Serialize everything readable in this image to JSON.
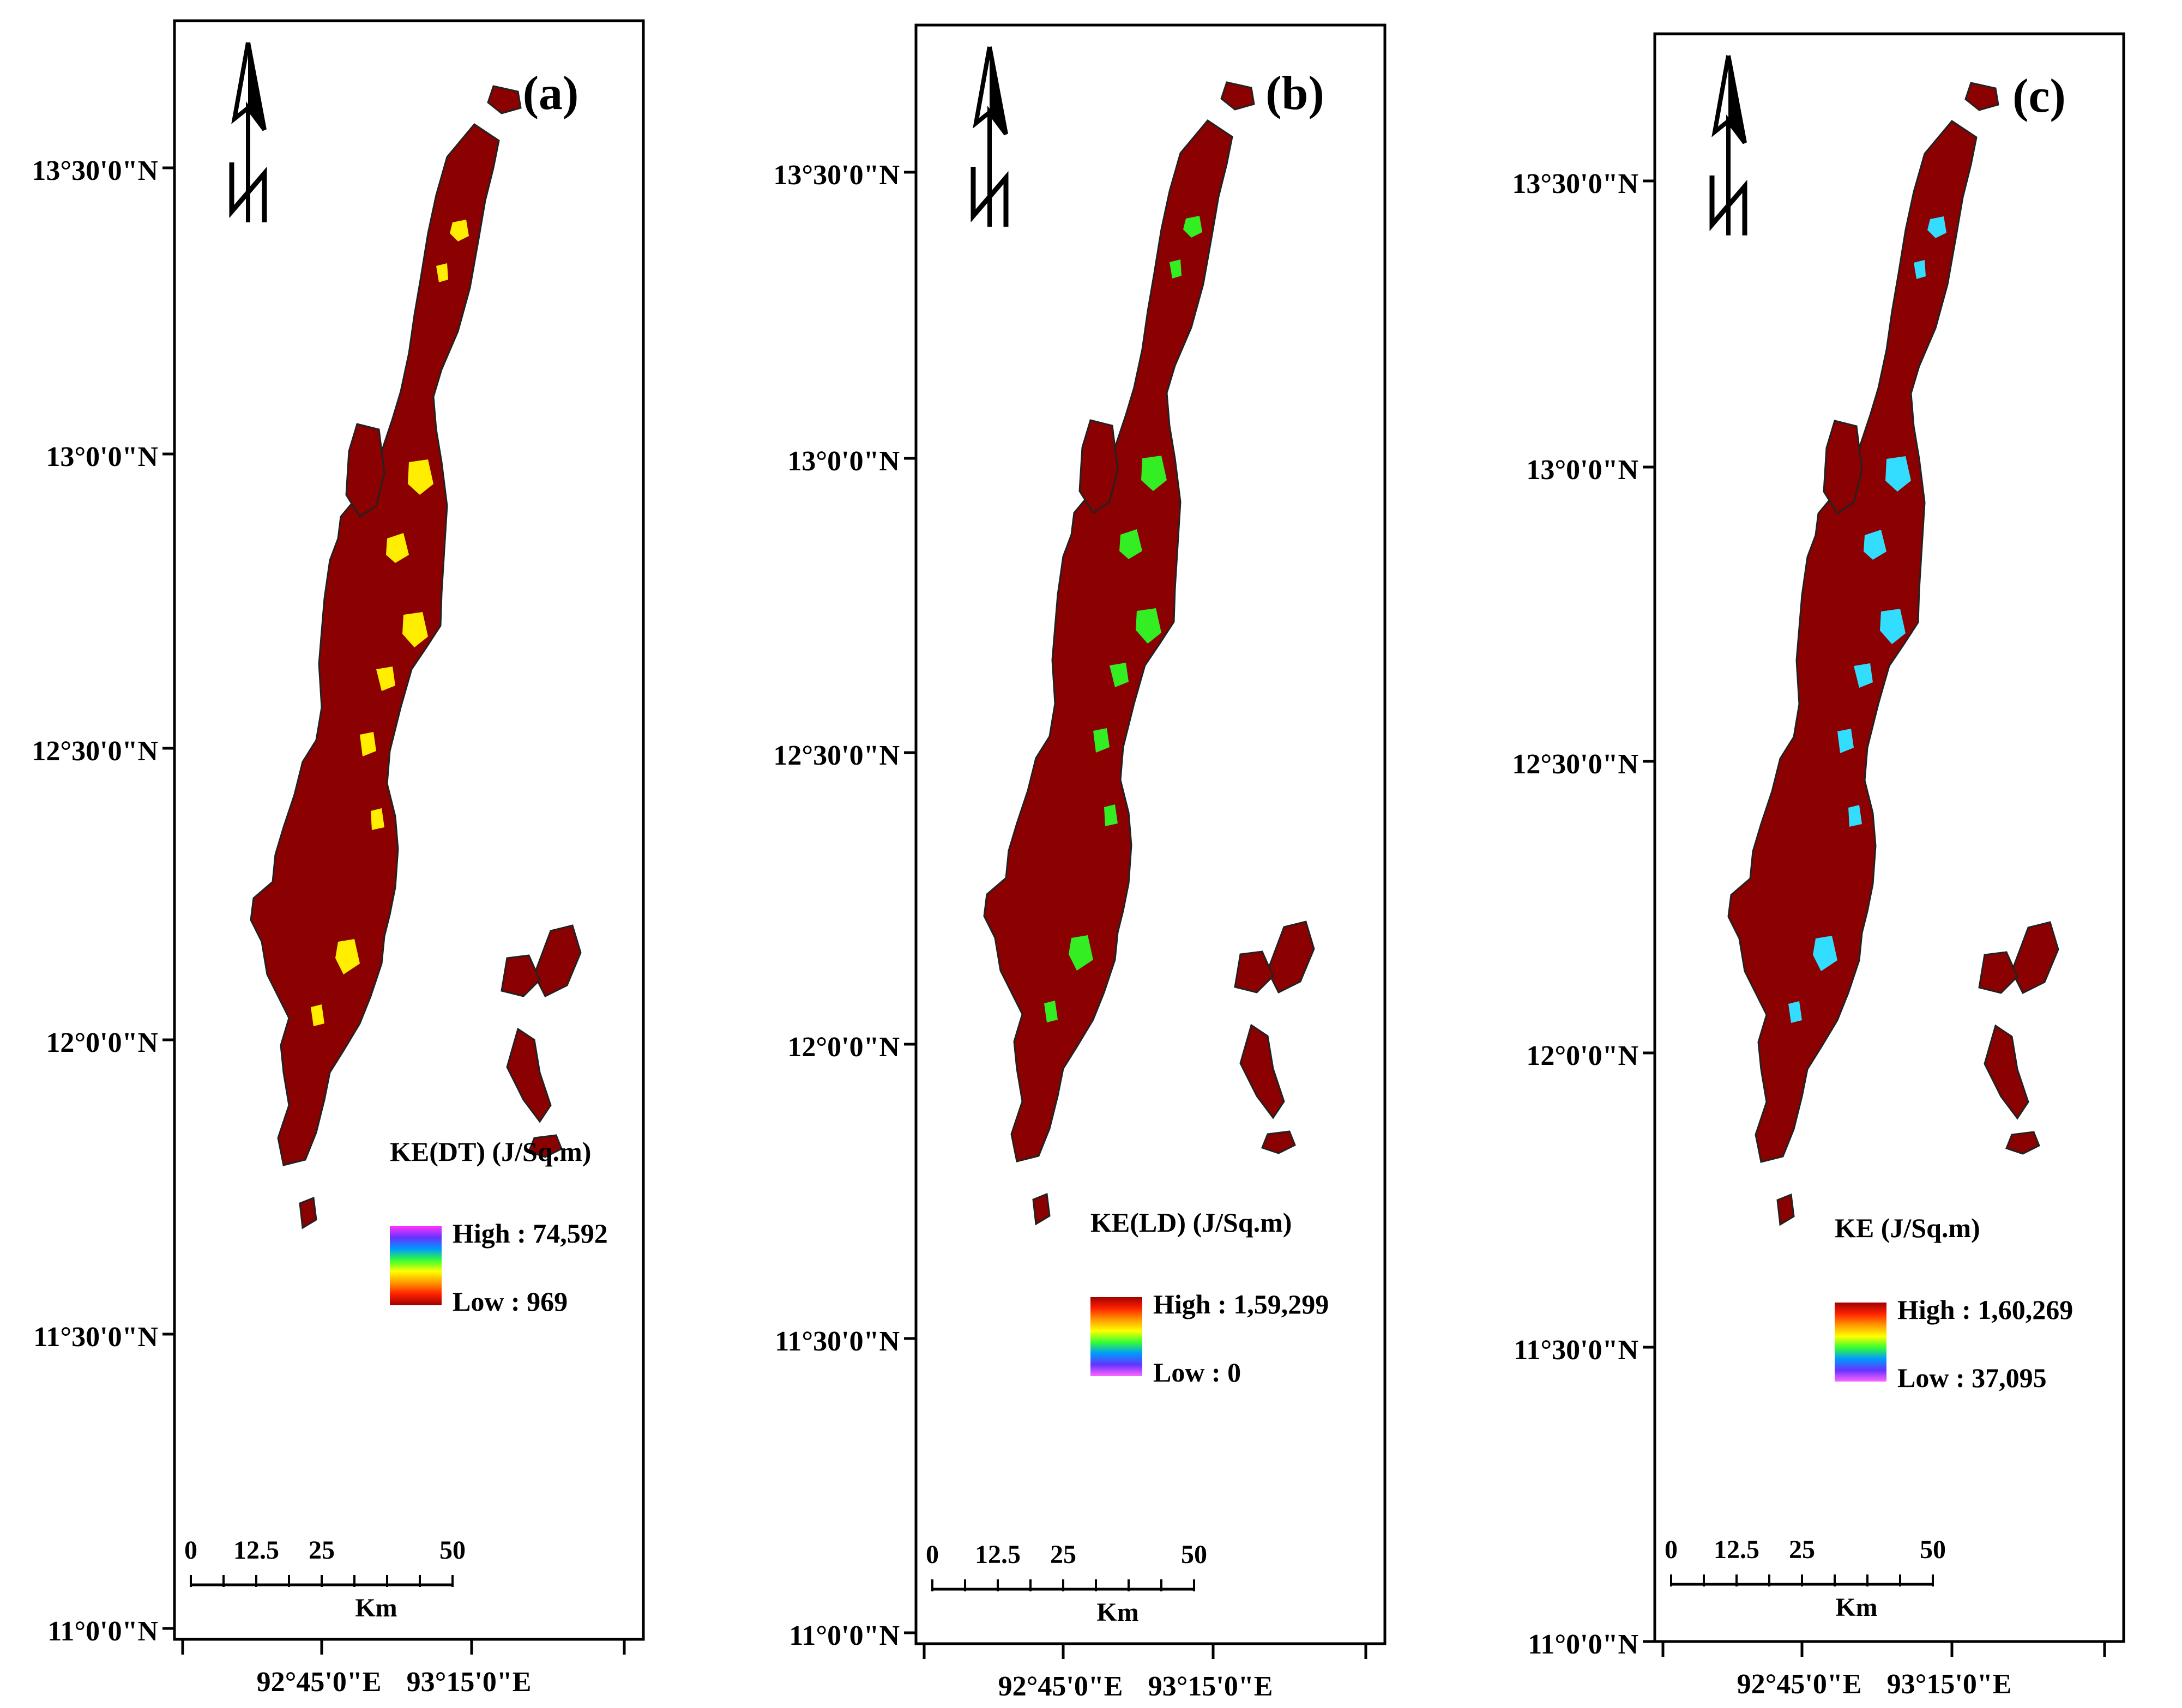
{
  "figure": {
    "panels": [
      {
        "id": "a",
        "label": "(a)",
        "legend_title": "KE(DT) (J/Sq.m)",
        "legend_high": "High : 74,592",
        "legend_low": "Low : 969",
        "highlight_color": "#ffee00",
        "ramp": [
          "#ff33ff",
          "#6633ff",
          "#0099ff",
          "#33ff33",
          "#ffff00",
          "#ff9900",
          "#ff2200",
          "#a00000"
        ]
      },
      {
        "id": "b",
        "label": "(b)",
        "legend_title": "KE(LD) (J/Sq.m)",
        "legend_high": "High : 1,59,299",
        "legend_low": "Low : 0",
        "highlight_color": "#33ee22",
        "ramp": [
          "#a00000",
          "#ff2200",
          "#ff9900",
          "#ffff00",
          "#33ff33",
          "#0099ff",
          "#6633ff",
          "#ff66ff"
        ]
      },
      {
        "id": "c",
        "label": "(c)",
        "legend_title": "KE (J/Sq.m)",
        "legend_high": "High : 1,60,269",
        "legend_low": "Low : 37,095",
        "highlight_color": "#33ddff",
        "ramp": [
          "#a00000",
          "#ff2200",
          "#ff9900",
          "#ffff00",
          "#33ff33",
          "#0099ff",
          "#6633ff",
          "#ff66ff"
        ]
      }
    ],
    "lat_labels": [
      "13°30'0\"N",
      "13°0'0\"N",
      "12°30'0\"N",
      "12°0'0\"N",
      "11°30'0\"N",
      "11°0'0\"N"
    ],
    "lon_labels": [
      "92°45'0\"E",
      "93°15'0\"E"
    ],
    "scale_ticks": [
      "0",
      "12.5",
      "25",
      "50"
    ],
    "scale_unit": "Km",
    "land_color": "#8b0000",
    "sea_color": "#ffffff"
  }
}
